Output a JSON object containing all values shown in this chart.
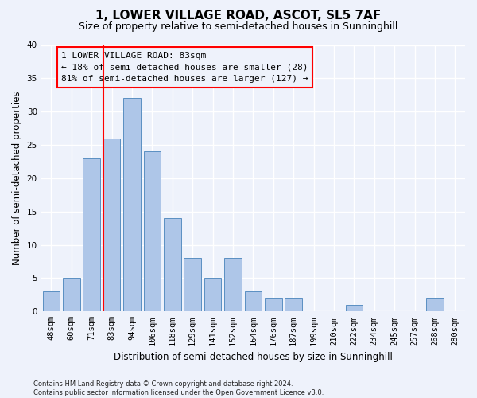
{
  "title": "1, LOWER VILLAGE ROAD, ASCOT, SL5 7AF",
  "subtitle": "Size of property relative to semi-detached houses in Sunninghill",
  "xlabel": "Distribution of semi-detached houses by size in Sunninghill",
  "ylabel": "Number of semi-detached properties",
  "footnote": "Contains HM Land Registry data © Crown copyright and database right 2024.\nContains public sector information licensed under the Open Government Licence v3.0.",
  "categories": [
    "48sqm",
    "60sqm",
    "71sqm",
    "83sqm",
    "94sqm",
    "106sqm",
    "118sqm",
    "129sqm",
    "141sqm",
    "152sqm",
    "164sqm",
    "176sqm",
    "187sqm",
    "199sqm",
    "210sqm",
    "222sqm",
    "234sqm",
    "245sqm",
    "257sqm",
    "268sqm",
    "280sqm"
  ],
  "values": [
    3,
    5,
    23,
    26,
    32,
    24,
    14,
    8,
    5,
    8,
    3,
    2,
    2,
    0,
    0,
    1,
    0,
    0,
    0,
    2,
    0
  ],
  "bar_color": "#aec6e8",
  "bar_edge_color": "#5a8fc2",
  "red_line_index": 3,
  "annotation_title": "1 LOWER VILLAGE ROAD: 83sqm",
  "annotation_line1": "← 18% of semi-detached houses are smaller (28)",
  "annotation_line2": "81% of semi-detached houses are larger (127) →",
  "ylim": [
    0,
    40
  ],
  "yticks": [
    0,
    5,
    10,
    15,
    20,
    25,
    30,
    35,
    40
  ],
  "background_color": "#eef2fb",
  "grid_color": "#ffffff",
  "title_fontsize": 11,
  "subtitle_fontsize": 9,
  "axis_label_fontsize": 8.5,
  "tick_fontsize": 7.5,
  "annotation_fontsize": 8
}
